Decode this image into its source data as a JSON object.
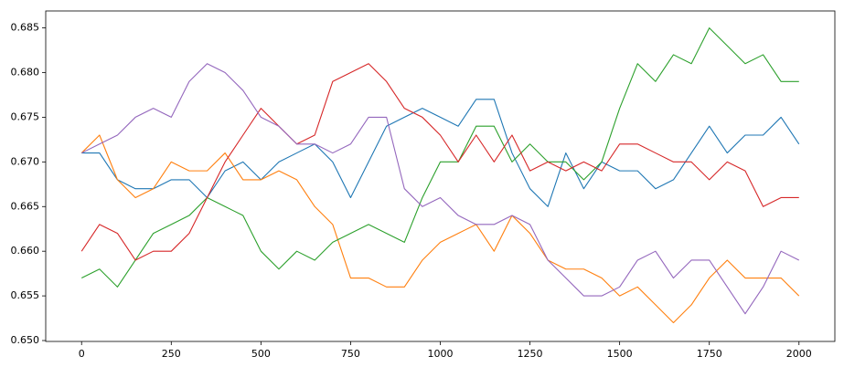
{
  "chart_data": {
    "type": "line",
    "x": [
      0,
      50,
      100,
      150,
      200,
      250,
      300,
      350,
      400,
      450,
      500,
      550,
      600,
      650,
      700,
      750,
      800,
      850,
      900,
      950,
      1000,
      1050,
      1100,
      1150,
      1200,
      1250,
      1300,
      1350,
      1400,
      1450,
      1500,
      1550,
      1600,
      1650,
      1700,
      1750,
      1800,
      1850,
      1900,
      1950,
      2000
    ],
    "series": [
      {
        "color": "#1f77b4",
        "values": [
          0.671,
          0.671,
          0.668,
          0.667,
          0.667,
          0.668,
          0.668,
          0.666,
          0.669,
          0.67,
          0.668,
          0.67,
          0.671,
          0.672,
          0.67,
          0.666,
          0.67,
          0.674,
          0.675,
          0.676,
          0.675,
          0.674,
          0.677,
          0.677,
          0.671,
          0.667,
          0.665,
          0.671,
          0.667,
          0.67,
          0.669,
          0.669,
          0.667,
          0.668,
          0.671,
          0.674,
          0.671,
          0.673,
          0.673,
          0.675,
          0.672
        ]
      },
      {
        "color": "#ff7f0e",
        "values": [
          0.671,
          0.673,
          0.668,
          0.666,
          0.667,
          0.67,
          0.669,
          0.669,
          0.671,
          0.668,
          0.668,
          0.669,
          0.668,
          0.665,
          0.663,
          0.657,
          0.657,
          0.656,
          0.656,
          0.659,
          0.661,
          0.662,
          0.663,
          0.66,
          0.664,
          0.662,
          0.659,
          0.658,
          0.658,
          0.657,
          0.655,
          0.656,
          0.654,
          0.652,
          0.654,
          0.657,
          0.659,
          0.657,
          0.657,
          0.657,
          0.655
        ]
      },
      {
        "color": "#2ca02c",
        "values": [
          0.657,
          0.658,
          0.656,
          0.659,
          0.662,
          0.663,
          0.664,
          0.666,
          0.665,
          0.664,
          0.66,
          0.658,
          0.66,
          0.659,
          0.661,
          0.662,
          0.663,
          0.662,
          0.661,
          0.666,
          0.67,
          0.67,
          0.674,
          0.674,
          0.67,
          0.672,
          0.67,
          0.67,
          0.668,
          0.67,
          0.676,
          0.681,
          0.679,
          0.682,
          0.681,
          0.685,
          0.683,
          0.681,
          0.682,
          0.679,
          0.679
        ]
      },
      {
        "color": "#d62728",
        "values": [
          0.66,
          0.663,
          0.662,
          0.659,
          0.66,
          0.66,
          0.662,
          0.666,
          0.67,
          0.673,
          0.676,
          0.674,
          0.672,
          0.673,
          0.679,
          0.68,
          0.681,
          0.679,
          0.676,
          0.675,
          0.673,
          0.67,
          0.673,
          0.67,
          0.673,
          0.669,
          0.67,
          0.669,
          0.67,
          0.669,
          0.672,
          0.672,
          0.671,
          0.67,
          0.67,
          0.668,
          0.67,
          0.669,
          0.665,
          0.666,
          0.666
        ]
      },
      {
        "color": "#9467bd",
        "values": [
          0.671,
          0.672,
          0.673,
          0.675,
          0.676,
          0.675,
          0.679,
          0.681,
          0.68,
          0.678,
          0.675,
          0.674,
          0.672,
          0.672,
          0.671,
          0.672,
          0.675,
          0.675,
          0.667,
          0.665,
          0.666,
          0.664,
          0.663,
          0.663,
          0.664,
          0.663,
          0.659,
          0.657,
          0.655,
          0.655,
          0.656,
          0.659,
          0.66,
          0.657,
          0.659,
          0.659,
          0.656,
          0.653,
          0.656,
          0.66,
          0.659
        ]
      }
    ],
    "xlim": [
      -100,
      2100
    ],
    "xticks": [
      0,
      250,
      500,
      750,
      1000,
      1250,
      1500,
      1750,
      2000
    ],
    "ylim": [
      0.6499,
      0.6869
    ],
    "yticks": [
      {
        "value": 0.65,
        "label": "0.650"
      },
      0.655,
      {
        "value": 0.66,
        "label": "0.660"
      },
      0.665,
      {
        "value": 0.67,
        "label": "0.670"
      },
      0.675,
      {
        "value": 0.68,
        "label": "0.680"
      },
      0.685
    ]
  }
}
